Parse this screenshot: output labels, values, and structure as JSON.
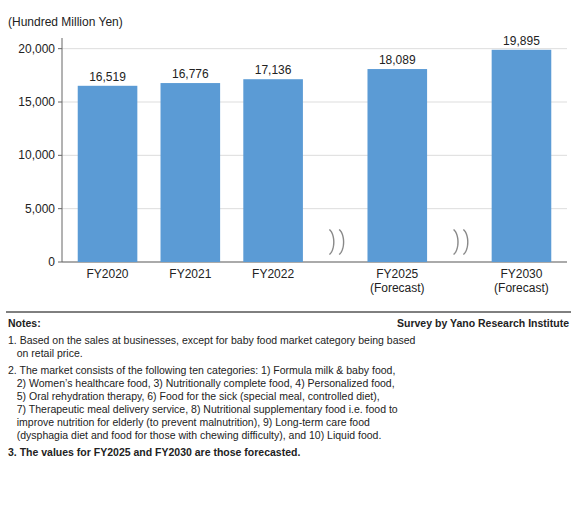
{
  "chart_data": {
    "type": "bar",
    "y_label": "(Hundred Million Yen)",
    "categories": [
      "FY2020",
      "FY2021",
      "FY2022",
      "FY2025\n(Forecast)",
      "FY2030\n(Forecast)"
    ],
    "values": [
      16519,
      16776,
      17136,
      18089,
      19895
    ],
    "value_labels": [
      "16,519",
      "16,776",
      "17,136",
      "18,089",
      "19,895"
    ],
    "data_labels": true,
    "color": "#5b9bd5",
    "ylim": [
      0,
      21000
    ],
    "yticks": [
      0,
      {
        "value": 5000,
        "label": "5,000"
      },
      {
        "value": 10000,
        "label": "10,000"
      },
      {
        "value": 15000,
        "label": "15,000"
      },
      {
        "value": 20000,
        "label": "20,000"
      }
    ],
    "grid": true,
    "annotations": [
      "Notes:",
      "Survey by Yano Research Institute",
      "1. Based on the sales at businesses, except for baby food market category being based\n   on retail price.",
      "2. The market consists of the following ten categories: 1) Formula milk & baby food,\n   2) Women’s healthcare food, 3) Nutritionally complete food, 4) Personalized food,\n   5) Oral rehydration therapy, 6) Food for the sick (special meal, controlled diet),\n   7) Therapeutic meal delivery service, 8) Nutritional supplementary food i.e. food to\n   improve nutrition for elderly (to prevent malnutrition), 9) Long-term care food\n   (dysphagia diet and food for those with chewing difficulty), and 10) Liquid food.",
      "3. The values for FY2025 and FY2030 are those forecasted."
    ]
  }
}
